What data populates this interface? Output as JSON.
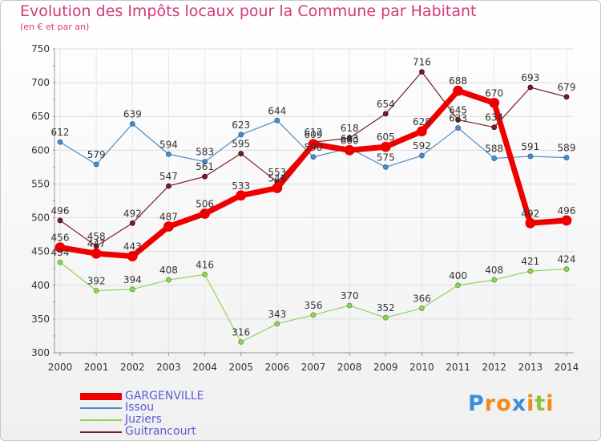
{
  "header": {
    "title": "Evolution des Impôts locaux pour la Commune par Habitant",
    "subtitle": "(en € et par an)"
  },
  "chart_data": {
    "type": "line",
    "title": "Evolution des Impôts locaux pour la Commune par Habitant",
    "subtitle": "(en € et par an)",
    "xlabel": "",
    "ylabel": "",
    "ylim": [
      300,
      750
    ],
    "yticks": [
      300,
      350,
      400,
      450,
      500,
      550,
      600,
      650,
      700,
      750
    ],
    "grid": true,
    "legend_position": "bottom-left",
    "categories": [
      "2000",
      "2001",
      "2002",
      "2003",
      "2004",
      "2005",
      "2006",
      "2007",
      "2008",
      "2009",
      "2010",
      "2011",
      "2012",
      "2013",
      "2014"
    ],
    "series": [
      {
        "name": "Issou",
        "color": "#4a8cc8",
        "values": [
          612,
          579,
          639,
          594,
          583,
          623,
          644,
          590,
          603,
          575,
          592,
          633,
          588,
          591,
          589
        ],
        "labels": [
          "612",
          "579",
          "639",
          "594",
          "583",
          "623",
          "644",
          "590",
          "603",
          "575",
          "592",
          "633",
          "588",
          "591",
          "589"
        ]
      },
      {
        "name": "Juziers",
        "color": "#8fd45a",
        "values": [
          434,
          392,
          394,
          408,
          416,
          316,
          343,
          356,
          370,
          352,
          366,
          400,
          408,
          421,
          424
        ],
        "labels": [
          "434",
          "392",
          "394",
          "408",
          "416",
          "316",
          "343",
          "356",
          "370",
          "352",
          "366",
          "400",
          "408",
          "421",
          "424"
        ]
      },
      {
        "name": "Guitrancourt",
        "color": "#7a1c28",
        "values": [
          496,
          458,
          492,
          547,
          561,
          595,
          553,
          612,
          618,
          654,
          716,
          645,
          634,
          693,
          679
        ],
        "labels": [
          "496",
          "458",
          "492",
          "547",
          "561",
          "595",
          "553",
          "612",
          "618",
          "654",
          "716",
          "645",
          "634",
          "693",
          "679"
        ]
      },
      {
        "name": "GARGENVILLE",
        "color": "#ee0000",
        "values": [
          456,
          447,
          443,
          487,
          506,
          533,
          544,
          609,
          600,
          605,
          628,
          688,
          670,
          492,
          496
        ],
        "labels": [
          "456",
          "447",
          "443",
          "487",
          "506",
          "533",
          "544",
          "609",
          "600",
          "605",
          "628",
          "688",
          "670",
          "492",
          "496"
        ]
      }
    ]
  },
  "legend": {
    "items": [
      {
        "label": "GARGENVILLE",
        "color": "#ee0000"
      },
      {
        "label": "Issou",
        "color": "#4a8cc8"
      },
      {
        "label": "Juziers",
        "color": "#8fd45a"
      },
      {
        "label": "Guitrancourt",
        "color": "#7a1c28"
      }
    ]
  },
  "logo": {
    "text": "Proxiti",
    "letters": [
      {
        "ch": "P",
        "color": "#3a8fd8"
      },
      {
        "ch": "r",
        "color": "#f08a1c"
      },
      {
        "ch": "o",
        "color": "#f08a1c"
      },
      {
        "ch": "x",
        "color": "#3a8fd8"
      },
      {
        "ch": "i",
        "color": "#f08a1c"
      },
      {
        "ch": "t",
        "color": "#8fc43a"
      },
      {
        "ch": "i",
        "color": "#f08a1c"
      }
    ]
  }
}
